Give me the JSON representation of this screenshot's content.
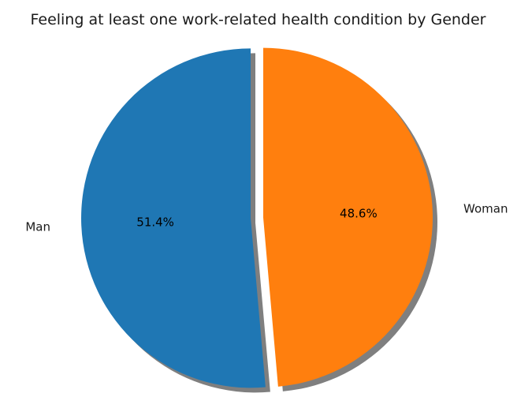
{
  "chart_data": {
    "type": "pie",
    "title": "Feeling at least one work-related health condition by Gender",
    "categories": [
      "Man",
      "Woman"
    ],
    "values": [
      51.4,
      48.6
    ],
    "percent_labels": [
      "51.4%",
      "48.6%"
    ],
    "colors": [
      "#1f77b4",
      "#ff7f0e"
    ],
    "shadow": true,
    "exploded": true,
    "start_angle_deg": 90,
    "direction": "counterclockwise"
  }
}
